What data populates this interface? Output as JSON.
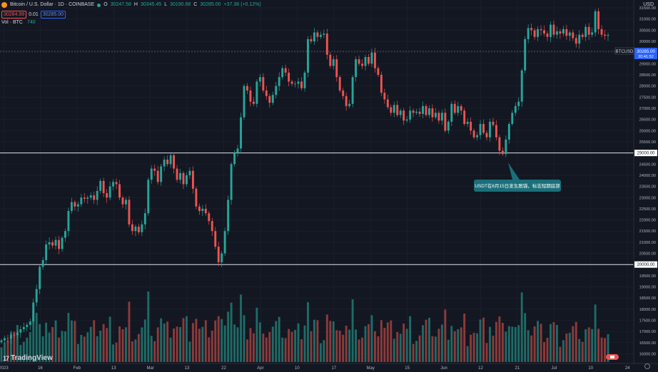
{
  "header": {
    "symbol": "Bitcoin / U.S. Dollar · 1D · COINBASE",
    "o_label": "O",
    "o": "30247.58",
    "h_label": "H",
    "h": "30345.45",
    "l_label": "L",
    "l": "30190.68",
    "c_label": "C",
    "c": "30285.00",
    "change": "+37.38 (+0.12%)",
    "sell": "30284.99",
    "spread": "0.01",
    "buy": "30285.00",
    "vol_label": "Vol · BTC",
    "vol_value": "740",
    "currency": "USD"
  },
  "annotation": "USDT在6月15日发生脱锚，标志短期底部",
  "logo_text": "TradingView",
  "colors": {
    "background": "#131722",
    "up": "#26a69a",
    "down": "#ef5350",
    "up_volume": "#1e6b66",
    "down_volume": "#8d3a3a",
    "annotation_bg": "#1a6f7a",
    "price_label": "#2962ff"
  },
  "chart_data": {
    "type": "candlestick",
    "symbol_label": "BTCUSD",
    "last_price": "30285.00",
    "countdown": "20:41:52",
    "x_ticks": [
      "2023",
      "16",
      "Feb",
      "13",
      "Mar",
      "13",
      "22",
      "Apr",
      "10",
      "17",
      "May",
      "15",
      "Jun",
      "12",
      "21",
      "Jul",
      "10",
      "24"
    ],
    "y_ticks": [
      "16000.00",
      "16500.00",
      "17000.00",
      "17500.00",
      "18000.00",
      "18500.00",
      "19000.00",
      "19500.00",
      "20000.00",
      "20500.00",
      "21000.00",
      "21500.00",
      "22000.00",
      "22500.00",
      "23000.00",
      "23500.00",
      "24000.00",
      "24500.00",
      "25000.00",
      "25500.00",
      "26000.00",
      "26500.00",
      "27000.00",
      "27500.00",
      "28000.00",
      "28500.00",
      "29000.00",
      "29500.00",
      "30000.00",
      "30500.00",
      "31000.00",
      "31500.00"
    ],
    "ylim": [
      15600,
      31950
    ],
    "horizontal_lines": [
      {
        "value": 25000,
        "label": "25000.00"
      },
      {
        "value": 20000,
        "label": "20000.00"
      }
    ],
    "closes": [
      16600,
      16700,
      16680,
      16850,
      16830,
      16950,
      17100,
      17200,
      17300,
      17450,
      18300,
      18900,
      19900,
      20200,
      20900,
      21000,
      20850,
      21100,
      20700,
      21200,
      21500,
      22400,
      22800,
      22600,
      22700,
      23000,
      22950,
      23000,
      23100,
      22900,
      23300,
      23750,
      23200,
      23000,
      23500,
      23700,
      23600,
      23000,
      22700,
      22900,
      21800,
      21500,
      21700,
      21450,
      21800,
      22300,
      23800,
      24300,
      24200,
      23700,
      24400,
      24700,
      24500,
      24900,
      24300,
      23800,
      24100,
      23600,
      24000,
      24200,
      23400,
      22600,
      22400,
      22500,
      22300,
      21950,
      21500,
      20800,
      20100,
      20500,
      21500,
      22900,
      24500,
      25000,
      25200,
      26600,
      28000,
      27800,
      27300,
      27200,
      28200,
      28400,
      27800,
      27550,
      27250,
      27600,
      28000,
      28400,
      28800,
      28600,
      28200,
      28100,
      28100,
      28200,
      27900,
      28600,
      30100,
      30000,
      30400,
      30200,
      30300,
      30350,
      29400,
      28900,
      29200,
      28400,
      27800,
      27550,
      27100,
      27200,
      28400,
      29200,
      29000,
      28900,
      29300,
      29000,
      29500,
      28800,
      28500,
      27700,
      27400,
      27050,
      26800,
      27150,
      26700,
      26900,
      26450,
      26500,
      26900,
      26800,
      26850,
      26750,
      27100,
      26700,
      27000,
      26600,
      26800,
      26450,
      26800,
      26000,
      26400,
      27200,
      26800,
      27100,
      26900,
      26300,
      26400,
      26000,
      25700,
      25800,
      26300,
      25900,
      25700,
      26400,
      26250,
      25700,
      25100,
      24950,
      25600,
      26300,
      26800,
      27100,
      27300,
      28700,
      30100,
      30600,
      30500,
      30200,
      30550,
      30500,
      30350,
      30200,
      30750,
      30300,
      30450,
      30350,
      30550,
      30250,
      30400,
      30150,
      29900,
      30300,
      30200,
      30650,
      30300,
      30400,
      31350,
      30550,
      30300,
      30250,
      30285
    ]
  }
}
